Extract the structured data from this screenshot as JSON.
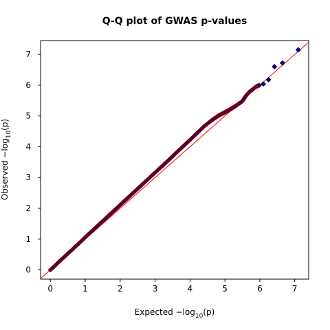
{
  "chart_data": {
    "type": "scatter",
    "title": "Q-Q plot of GWAS p-values",
    "xlabel": {
      "prefix": "Expected  −log",
      "sub": "10",
      "arg": "(p)"
    },
    "ylabel": {
      "prefix": "Observed  −log",
      "sub": "10",
      "arg": "(p)"
    },
    "xlim": [
      -0.28,
      7.4
    ],
    "ylim": [
      -0.3,
      7.45
    ],
    "xticks": [
      0,
      1,
      2,
      3,
      4,
      5,
      6,
      7
    ],
    "yticks": [
      0,
      1,
      2,
      3,
      4,
      5,
      6,
      7
    ],
    "grid": false,
    "reference_line": {
      "slope": 1,
      "intercept": 0,
      "color": "#ff0000"
    },
    "marker": {
      "shape": "diamond",
      "fill": "#00008b",
      "edge": "#8b0000"
    },
    "series": [
      {
        "x": [
          0.0,
          0.1,
          0.2,
          0.3,
          0.4,
          0.5,
          0.6,
          0.7,
          0.8,
          0.9,
          1.0,
          1.2,
          1.4,
          1.6,
          1.8,
          2.0,
          2.2,
          2.4,
          2.6,
          2.8,
          3.0,
          3.2,
          3.4,
          3.6,
          3.8,
          4.0,
          4.2,
          4.4,
          4.6,
          4.8,
          5.0,
          5.1,
          5.2,
          5.3,
          5.4,
          5.5,
          5.6,
          5.7,
          5.8,
          5.9,
          6.0,
          6.1,
          6.25,
          6.42,
          6.65,
          7.1
        ],
        "y": [
          0.0,
          0.1,
          0.21,
          0.32,
          0.42,
          0.53,
          0.63,
          0.74,
          0.84,
          0.95,
          1.06,
          1.27,
          1.48,
          1.69,
          1.9,
          2.11,
          2.32,
          2.53,
          2.74,
          2.95,
          3.16,
          3.37,
          3.58,
          3.8,
          4.01,
          4.22,
          4.44,
          4.66,
          4.84,
          5.0,
          5.12,
          5.18,
          5.25,
          5.32,
          5.4,
          5.48,
          5.65,
          5.78,
          5.87,
          5.96,
          6.0,
          6.04,
          6.18,
          6.6,
          6.72,
          7.15
        ]
      }
    ]
  }
}
